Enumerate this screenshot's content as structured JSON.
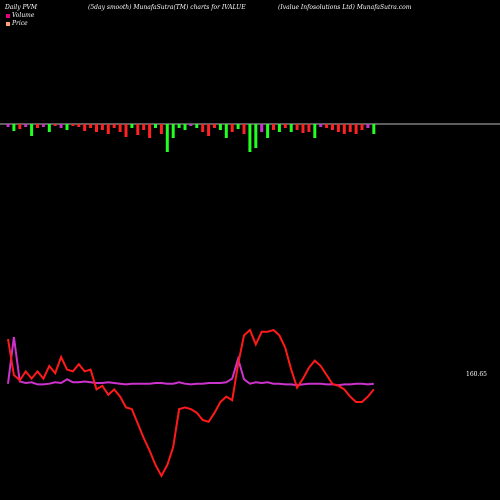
{
  "header": {
    "left": "Daily PVM",
    "center": "(5day smooth) MunafaSutra(TM) charts for IVALUE",
    "right": "(Ivalue  Infosolutions Ltd) MunafaSutra.com"
  },
  "legend": [
    {
      "label": "Volume",
      "color": "#e6007e"
    },
    {
      "label": "Price",
      "color": "#ffa07a"
    }
  ],
  "colors": {
    "volume_up": "#22ff22",
    "volume_down": "#ff2222",
    "volume_highlight": "#cc33cc",
    "price_line": "#ff1a1a",
    "pvm_line": "#cc33cc",
    "baseline": "#bbbbbb"
  },
  "chart_data": {
    "type": "bar",
    "volume_bars": [
      -3,
      -7,
      -5,
      -3,
      -12,
      -4,
      -3,
      -8,
      -2,
      -4,
      -6,
      -2,
      -3,
      -7,
      -4,
      -8,
      -6,
      -10,
      -4,
      -8,
      -13,
      -4,
      -11,
      -6,
      -14,
      -4,
      -10,
      -28,
      -14,
      -4,
      -6,
      -2,
      -4,
      -8,
      -12,
      -4,
      -6,
      -14,
      -8,
      -5,
      -10,
      -28,
      -24,
      -8,
      -14,
      -6,
      -8,
      -4,
      -8,
      -6,
      -9,
      -8,
      -14,
      -3,
      -4,
      -6,
      -8,
      -10,
      -8,
      -10,
      -6,
      -4,
      -10
    ],
    "volume_colors": [
      "h",
      "g",
      "r",
      "h",
      "g",
      "r",
      "h",
      "g",
      "r",
      "h",
      "g",
      "r",
      "r",
      "r",
      "r",
      "r",
      "r",
      "r",
      "r",
      "r",
      "r",
      "g",
      "r",
      "r",
      "r",
      "g",
      "r",
      "g",
      "g",
      "g",
      "g",
      "h",
      "g",
      "r",
      "r",
      "r",
      "g",
      "g",
      "r",
      "g",
      "r",
      "g",
      "g",
      "h",
      "g",
      "r",
      "g",
      "r",
      "g",
      "r",
      "r",
      "r",
      "g",
      "h",
      "r",
      "r",
      "r",
      "r",
      "r",
      "r",
      "r",
      "h",
      "g"
    ],
    "price_series": [
      45,
      25,
      22,
      27,
      23,
      27,
      23,
      30,
      26,
      35,
      28,
      27,
      31,
      27,
      28,
      17,
      19,
      14,
      17,
      13,
      7,
      6,
      -2,
      -10,
      -17,
      -25,
      -31,
      -25,
      -15,
      6,
      7,
      6,
      4,
      0,
      -1,
      4,
      10,
      13,
      11,
      31,
      47,
      50,
      42,
      49,
      49,
      50,
      47,
      40,
      28,
      18,
      23,
      29,
      33,
      30,
      25,
      20,
      19,
      17,
      13,
      10,
      10,
      13,
      17
    ]
  },
  "pvm_series": [
    36,
    100,
    39,
    37,
    38,
    35,
    35,
    36,
    38,
    37,
    42,
    38,
    38,
    39,
    38,
    37,
    37,
    38,
    37,
    36,
    35,
    36,
    36,
    36,
    36,
    37,
    37,
    36,
    36,
    38,
    36,
    35,
    36,
    36,
    37,
    37,
    37,
    38,
    43,
    70,
    42,
    36,
    38,
    37,
    38,
    36,
    36,
    35,
    35,
    34,
    35,
    36,
    36,
    36,
    35,
    35,
    34,
    35,
    35,
    36,
    36,
    35,
    36
  ],
  "price_label": "160.65"
}
